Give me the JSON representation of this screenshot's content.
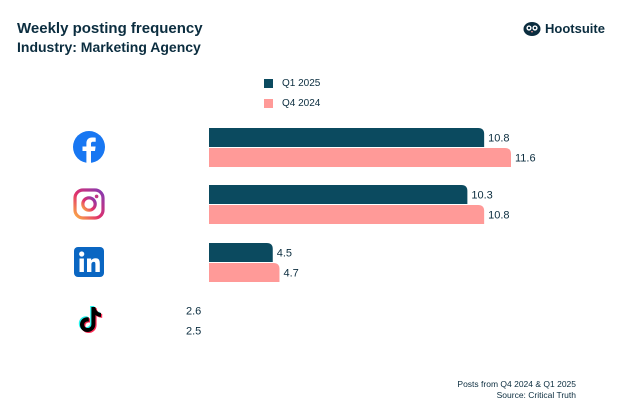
{
  "header": {
    "title": "Weekly posting frequency",
    "subtitle": "Industry: Marketing Agency",
    "brand": "Hootsuite"
  },
  "chart_data": {
    "type": "bar",
    "orientation": "horizontal",
    "title": "Weekly posting frequency",
    "subtitle": "Industry: Marketing Agency",
    "categories": [
      "Facebook",
      "Instagram",
      "LinkedIn",
      "TikTok"
    ],
    "series": [
      {
        "name": "Q1 2025",
        "color": "#0b4a5f",
        "values": [
          10.8,
          10.3,
          4.5,
          2.6
        ]
      },
      {
        "name": "Q4 2024",
        "color": "#ff9a98",
        "values": [
          11.6,
          10.8,
          4.7,
          2.5
        ]
      }
    ],
    "xlim": [
      2.6,
      11.6
    ],
    "grid": false,
    "legend": "top-center"
  },
  "footnote": {
    "line1": "Posts from Q4 2024 & Q1 2025",
    "line2": "Source: Critical Truth"
  }
}
